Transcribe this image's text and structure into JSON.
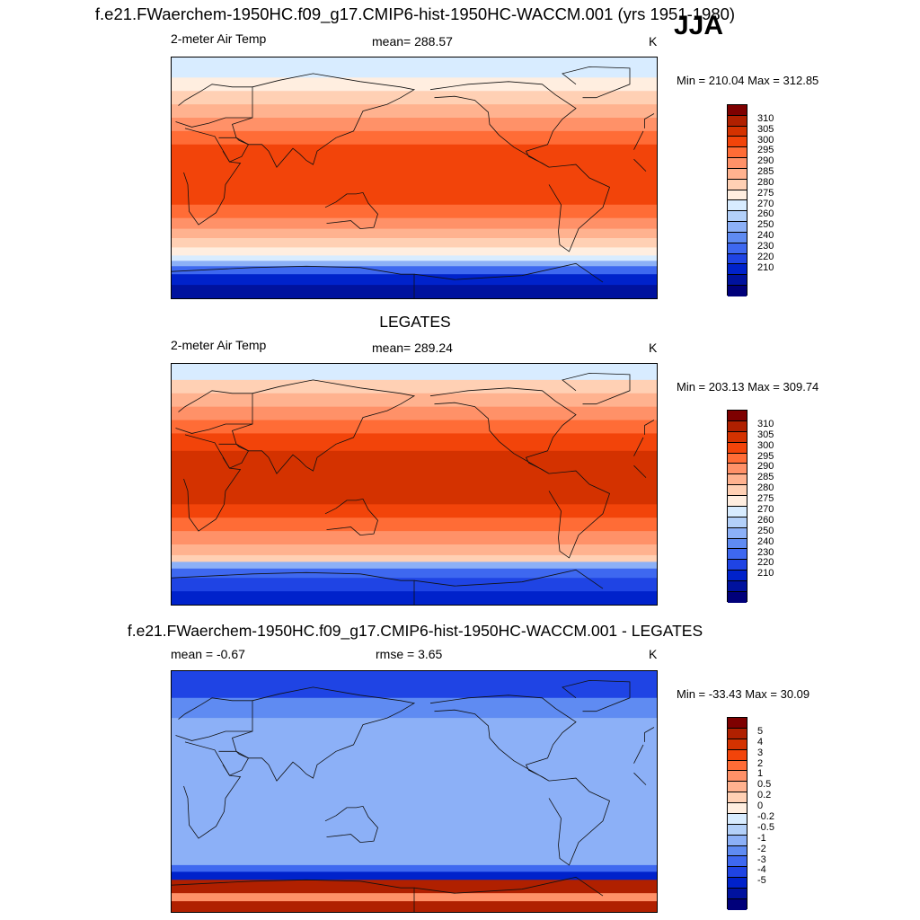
{
  "title": "f.e21.FWaerchem-1950HC.f09_g17.CMIP6-hist-1950HC-WACCM.001 (yrs 1951-1980)",
  "season": "JJA",
  "panels": [
    {
      "heading": "",
      "left_label": "2-meter Air Temp",
      "center_label": "mean= 288.57",
      "units": "K",
      "minmax": "Min = 210.04 Max = 312.85",
      "colorbar": {
        "colors": [
          "#7e0000",
          "#b02000",
          "#d43200",
          "#f2440a",
          "#ff6c36",
          "#ff9168",
          "#ffb28f",
          "#ffd0b4",
          "#ffeee0",
          "#d8ecff",
          "#b3d0f9",
          "#8cb0f7",
          "#5f8bf2",
          "#3e68f0",
          "#1f44e4",
          "#0022cb",
          "#00129e",
          "#00007a"
        ],
        "labels": [
          "310",
          "305",
          "300",
          "295",
          "290",
          "285",
          "280",
          "275",
          "270",
          "260",
          "250",
          "240",
          "230",
          "220",
          "210"
        ]
      },
      "map": {
        "bands": [
          {
            "lat_top": 90,
            "lat_bottom": 75,
            "color": "#d8ecff"
          },
          {
            "lat_top": 75,
            "lat_bottom": 65,
            "color": "#ffeee0"
          },
          {
            "lat_top": 65,
            "lat_bottom": 55,
            "color": "#ffd0b4"
          },
          {
            "lat_top": 55,
            "lat_bottom": 45,
            "color": "#ffb28f"
          },
          {
            "lat_top": 45,
            "lat_bottom": 35,
            "color": "#ff9168"
          },
          {
            "lat_top": 35,
            "lat_bottom": 25,
            "color": "#ff6c36"
          },
          {
            "lat_top": 25,
            "lat_bottom": -20,
            "color": "#f2440a"
          },
          {
            "lat_top": -20,
            "lat_bottom": -30,
            "color": "#ff6c36"
          },
          {
            "lat_top": -30,
            "lat_bottom": -38,
            "color": "#ff9168"
          },
          {
            "lat_top": -38,
            "lat_bottom": -45,
            "color": "#ffb28f"
          },
          {
            "lat_top": -45,
            "lat_bottom": -52,
            "color": "#ffd0b4"
          },
          {
            "lat_top": -52,
            "lat_bottom": -58,
            "color": "#ffeee0"
          },
          {
            "lat_top": -58,
            "lat_bottom": -62,
            "color": "#d8ecff"
          },
          {
            "lat_top": -62,
            "lat_bottom": -66,
            "color": "#8cb0f7"
          },
          {
            "lat_top": -66,
            "lat_bottom": -72,
            "color": "#3e68f0"
          },
          {
            "lat_top": -72,
            "lat_bottom": -80,
            "color": "#0022cb"
          },
          {
            "lat_top": -80,
            "lat_bottom": -90,
            "color": "#00129e"
          }
        ]
      }
    },
    {
      "heading": "LEGATES",
      "left_label": "2-meter Air Temp",
      "center_label": "mean= 289.24",
      "units": "K",
      "minmax": "Min = 203.13 Max = 309.74",
      "colorbar": {
        "colors": [
          "#7e0000",
          "#b02000",
          "#d43200",
          "#f2440a",
          "#ff6c36",
          "#ff9168",
          "#ffb28f",
          "#ffd0b4",
          "#ffeee0",
          "#d8ecff",
          "#b3d0f9",
          "#8cb0f7",
          "#5f8bf2",
          "#3e68f0",
          "#1f44e4",
          "#0022cb",
          "#00129e",
          "#00007a"
        ],
        "labels": [
          "310",
          "305",
          "300",
          "295",
          "290",
          "285",
          "280",
          "275",
          "270",
          "260",
          "250",
          "240",
          "230",
          "220",
          "210"
        ]
      },
      "map": {
        "bands": [
          {
            "lat_top": 90,
            "lat_bottom": 78,
            "color": "#d8ecff"
          },
          {
            "lat_top": 78,
            "lat_bottom": 68,
            "color": "#ffd0b4"
          },
          {
            "lat_top": 68,
            "lat_bottom": 58,
            "color": "#ffb28f"
          },
          {
            "lat_top": 58,
            "lat_bottom": 48,
            "color": "#ff9168"
          },
          {
            "lat_top": 48,
            "lat_bottom": 38,
            "color": "#ff6c36"
          },
          {
            "lat_top": 38,
            "lat_bottom": 25,
            "color": "#f2440a"
          },
          {
            "lat_top": 25,
            "lat_bottom": -15,
            "color": "#d43200"
          },
          {
            "lat_top": -15,
            "lat_bottom": -25,
            "color": "#f2440a"
          },
          {
            "lat_top": -25,
            "lat_bottom": -35,
            "color": "#ff6c36"
          },
          {
            "lat_top": -35,
            "lat_bottom": -45,
            "color": "#ff9168"
          },
          {
            "lat_top": -45,
            "lat_bottom": -53,
            "color": "#ffb28f"
          },
          {
            "lat_top": -53,
            "lat_bottom": -58,
            "color": "#ffd0b4"
          },
          {
            "lat_top": -58,
            "lat_bottom": -63,
            "color": "#8cb0f7"
          },
          {
            "lat_top": -63,
            "lat_bottom": -70,
            "color": "#3e68f0"
          },
          {
            "lat_top": -70,
            "lat_bottom": -80,
            "color": "#1f44e4"
          },
          {
            "lat_top": -80,
            "lat_bottom": -90,
            "color": "#0022cb"
          }
        ]
      }
    },
    {
      "heading": "f.e21.FWaerchem-1950HC.f09_g17.CMIP6-hist-1950HC-WACCM.001 - LEGATES",
      "left_label": "mean =  -0.67",
      "center_label": "rmse =   3.65",
      "units": "K",
      "minmax": "Min = -33.43 Max =  30.09",
      "colorbar": {
        "colors": [
          "#7e0000",
          "#b02000",
          "#d43200",
          "#f2440a",
          "#ff6c36",
          "#ff9168",
          "#ffb28f",
          "#ffd0b4",
          "#ffeee0",
          "#d8ecff",
          "#b3d0f9",
          "#8cb0f7",
          "#5f8bf2",
          "#3e68f0",
          "#1f44e4",
          "#0022cb",
          "#00129e",
          "#00007a"
        ],
        "labels": [
          "5",
          "4",
          "3",
          "2",
          "1",
          "0.5",
          "0.2",
          "0",
          "-0.2",
          "-0.5",
          "-1",
          "-2",
          "-3",
          "-4",
          "-5"
        ]
      },
      "map": {
        "bands": [
          {
            "lat_top": 90,
            "lat_bottom": 70,
            "color": "#1f44e4"
          },
          {
            "lat_top": 70,
            "lat_bottom": 55,
            "color": "#5f8bf2"
          },
          {
            "lat_top": 55,
            "lat_bottom": -55,
            "color": "#8cb0f7"
          },
          {
            "lat_top": -55,
            "lat_bottom": -60,
            "color": "#3e68f0"
          },
          {
            "lat_top": -60,
            "lat_bottom": -66,
            "color": "#0022cb"
          },
          {
            "lat_top": -66,
            "lat_bottom": -76,
            "color": "#b02000"
          },
          {
            "lat_top": -76,
            "lat_bottom": -82,
            "color": "#ff9168"
          },
          {
            "lat_top": -82,
            "lat_bottom": -90,
            "color": "#b02000"
          }
        ]
      }
    }
  ]
}
